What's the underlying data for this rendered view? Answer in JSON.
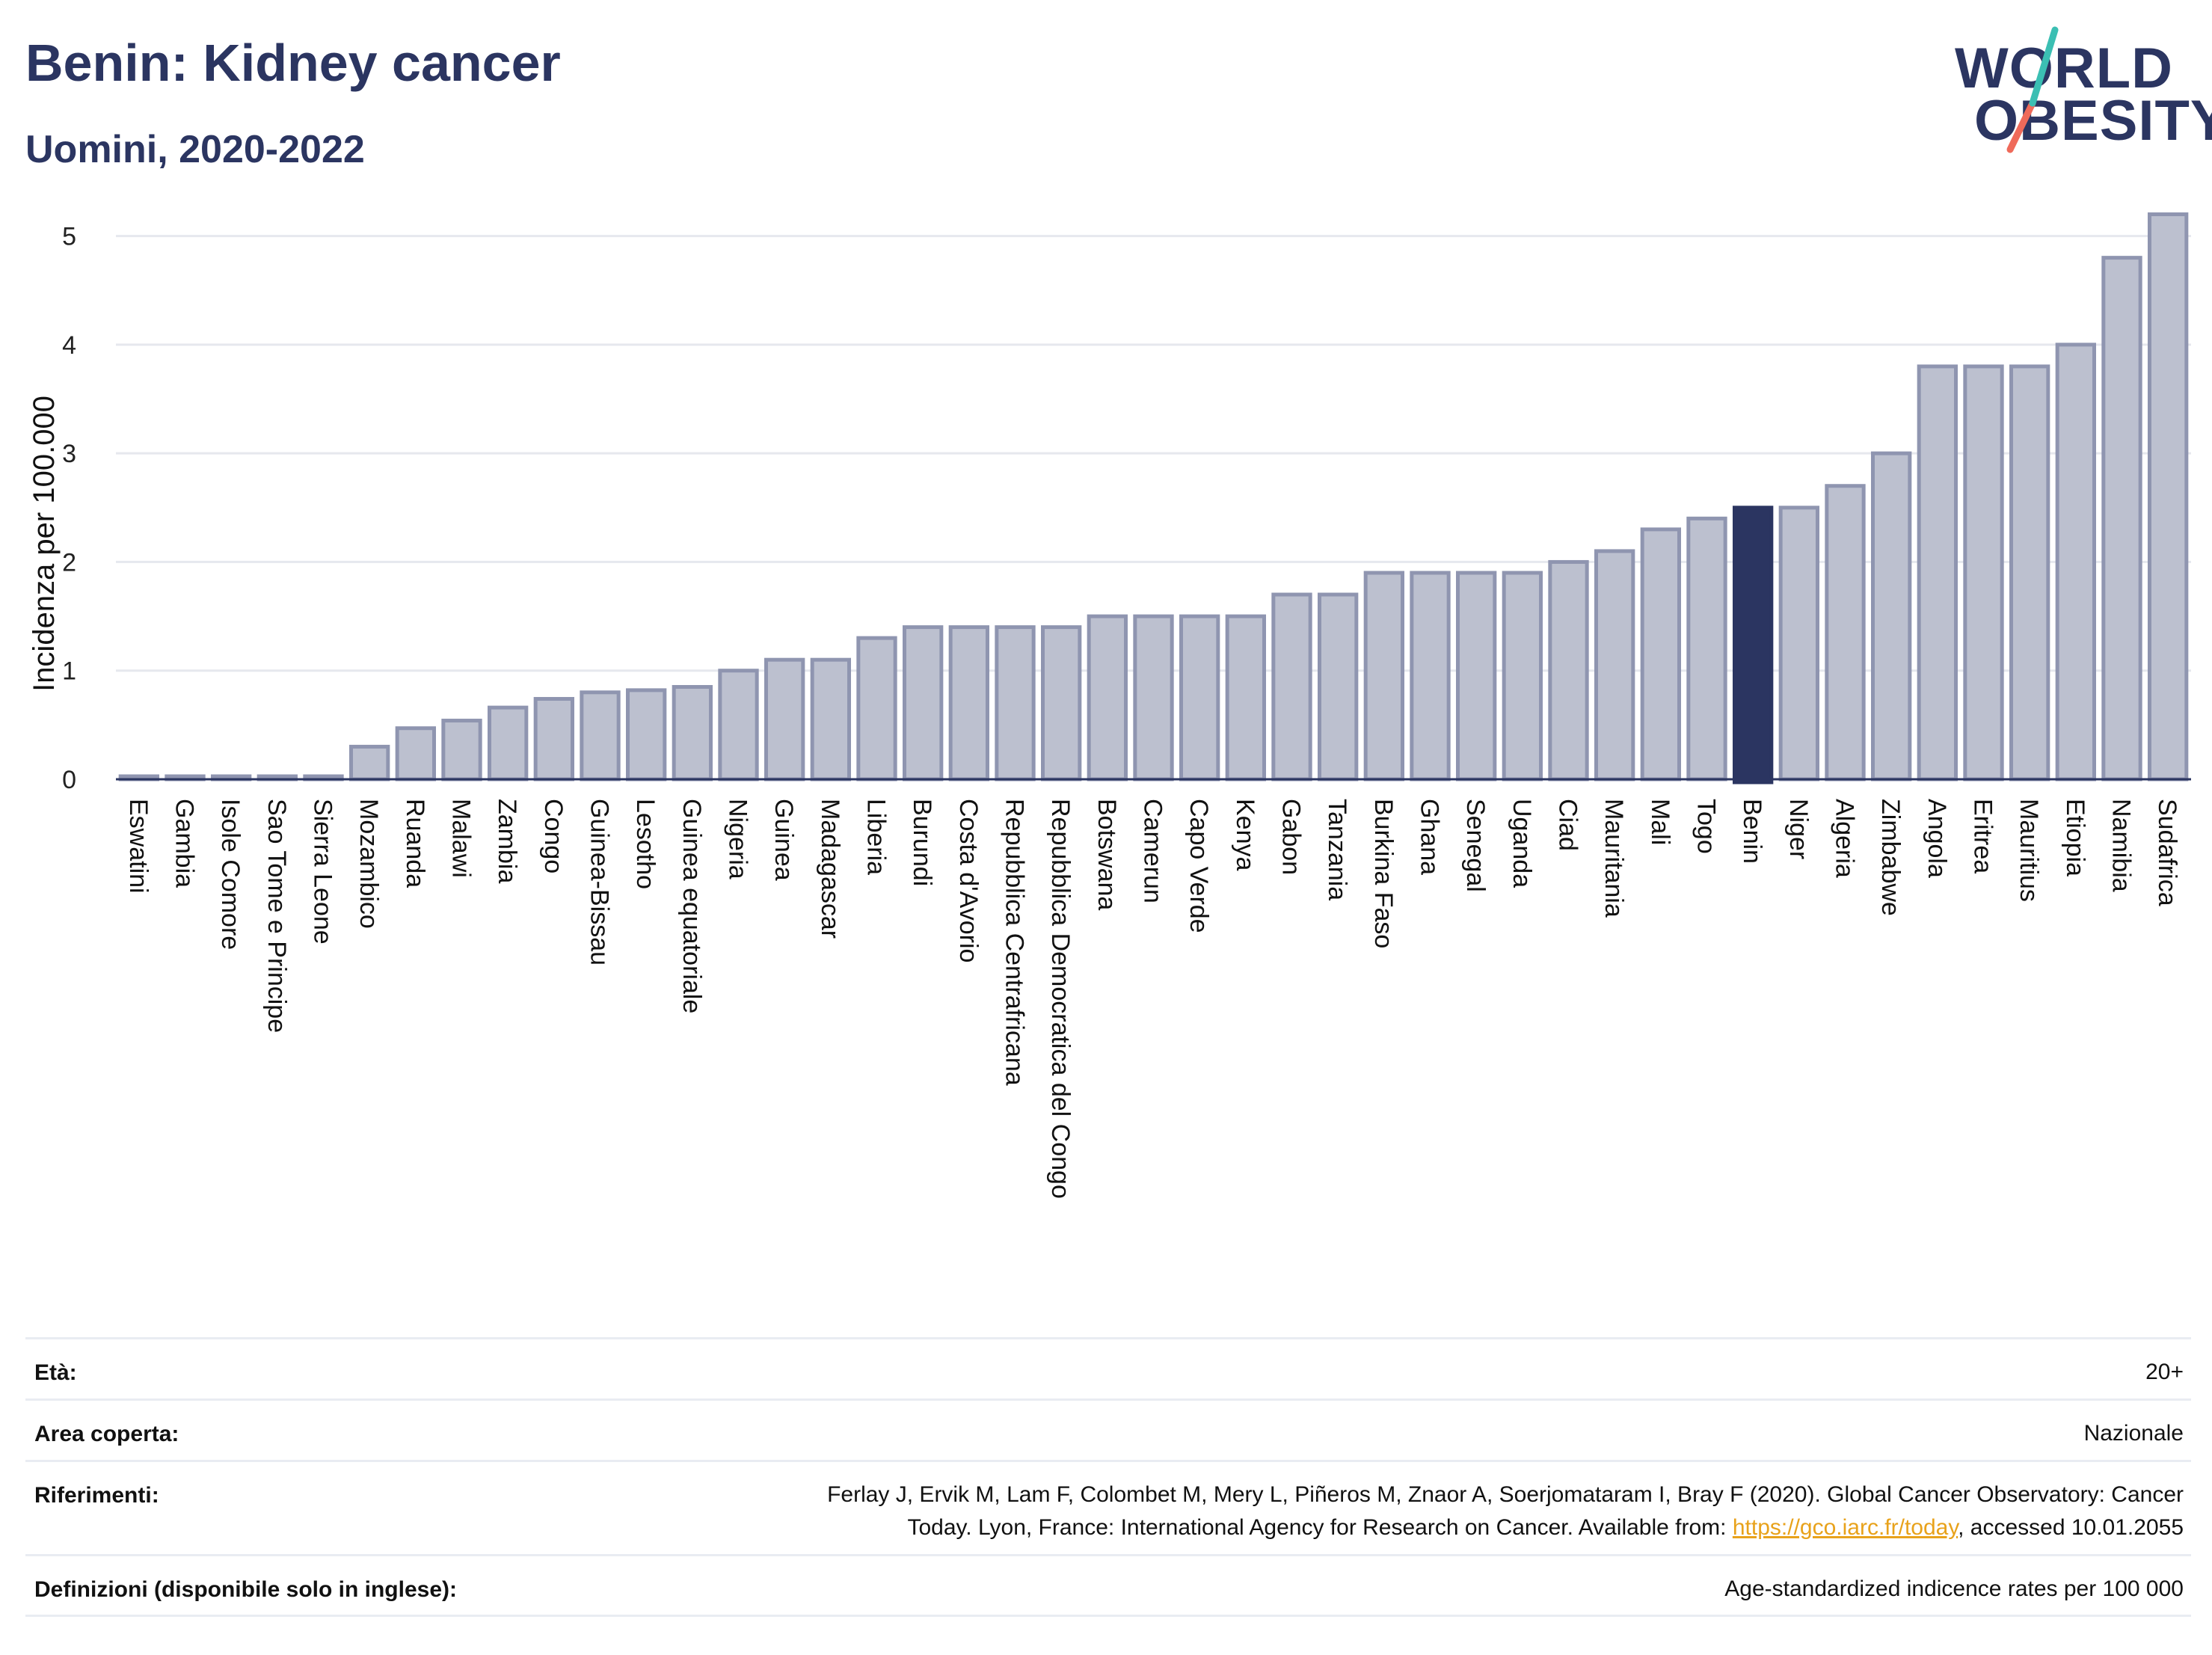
{
  "header": {
    "title": "Benin: Kidney cancer",
    "subtitle": "Uomini, 2020-2022"
  },
  "logo": {
    "line1": "WORLD",
    "line2": "OBESITY"
  },
  "chart_data": {
    "type": "bar",
    "ylabel": "Incidenza per 100.000",
    "ylim": [
      0,
      5.3
    ],
    "yticks": [
      0,
      1,
      2,
      3,
      4,
      5
    ],
    "grid": true,
    "highlight": "Benin",
    "colors": {
      "bar": "#bcc0cf",
      "bar_edge": "#8f95b0",
      "highlight": "#2b3561",
      "grid": "#e6e8ee"
    },
    "categories": [
      "Eswatini",
      "Gambia",
      "Isole Comore",
      "Sao Tome e Principe",
      "Sierra Leone",
      "Mozambico",
      "Ruanda",
      "Malawi",
      "Zambia",
      "Congo",
      "Guinea-Bissau",
      "Lesotho",
      "Guinea equatoriale",
      "Nigeria",
      "Guinea",
      "Madagascar",
      "Liberia",
      "Burundi",
      "Costa d'Avorio",
      "Repubblica Centrafricana",
      "Repubblica Democratica del Congo",
      "Botswana",
      "Camerun",
      "Capo Verde",
      "Kenya",
      "Gabon",
      "Tanzania",
      "Burkina Faso",
      "Ghana",
      "Senegal",
      "Uganda",
      "Ciad",
      "Mauritania",
      "Mali",
      "Togo",
      "Benin",
      "Niger",
      "Algeria",
      "Zimbabwe",
      "Angola",
      "Eritrea",
      "Mauritius",
      "Etiopia",
      "Namibia",
      "Sudafrica"
    ],
    "values": [
      0.02,
      0.02,
      0.02,
      0.02,
      0.02,
      0.3,
      0.47,
      0.54,
      0.66,
      0.74,
      0.8,
      0.82,
      0.85,
      1.0,
      1.1,
      1.1,
      1.3,
      1.4,
      1.4,
      1.4,
      1.4,
      1.5,
      1.5,
      1.5,
      1.5,
      1.7,
      1.7,
      1.9,
      1.9,
      1.9,
      1.9,
      2.0,
      2.1,
      2.3,
      2.4,
      2.5,
      2.5,
      2.7,
      3.0,
      3.8,
      3.8,
      3.8,
      4.0,
      4.8,
      5.2
    ]
  },
  "meta": {
    "age_label": "Età:",
    "age_value": "20+",
    "area_label": "Area coperta:",
    "area_value": "Nazionale",
    "ref_label": "Riferimenti:",
    "ref_text_1": "Ferlay J, Ervik M, Lam F, Colombet M, Mery L, Piñeros M, Znaor A, Soerjomataram I, Bray F (2020). Global Cancer Observatory: Cancer",
    "ref_text_2": "Today. Lyon, France: International Agency for Research on Cancer. Available from: ",
    "ref_link": "https://gco.iarc.fr/today",
    "ref_text_3": ", accessed 10.01.2055",
    "def_label": "Definizioni (disponibile solo in inglese):",
    "def_value": "Age-standardized indicence rates per 100 000"
  }
}
